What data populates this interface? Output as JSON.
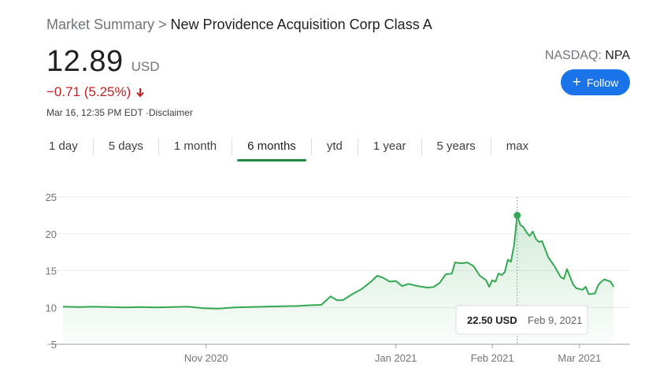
{
  "breadcrumb": {
    "root": "Market Summary",
    "separator": ">",
    "current": "New Providence Acquisition Corp Class A"
  },
  "quote": {
    "price": "12.89",
    "currency": "USD",
    "change": "−0.71 (5.25%)",
    "timestamp": "Mar 16, 12:35 PM EDT ·Disclaimer",
    "exchange_name": "NASDAQ: ",
    "ticker": "NPA"
  },
  "follow_button": {
    "label": "Follow",
    "icon": "plus-icon"
  },
  "tabs": [
    {
      "label": "1 day",
      "active": false
    },
    {
      "label": "5 days",
      "active": false
    },
    {
      "label": "1 month",
      "active": false
    },
    {
      "label": "6 months",
      "active": true
    },
    {
      "label": "ytd",
      "active": false
    },
    {
      "label": "1 year",
      "active": false
    },
    {
      "label": "5 years",
      "active": false
    },
    {
      "label": "max",
      "active": false
    }
  ],
  "tooltip": {
    "price": "22.50 USD",
    "date": "Feb 9, 2021"
  },
  "colors": {
    "accent": "#1a73e8",
    "negative": "#c5221f",
    "line": "#34a853",
    "active_tab": "#1e8e3e"
  },
  "chart_data": {
    "type": "area",
    "yticks": [
      "25",
      "20",
      "15",
      "10",
      "5"
    ],
    "ylim": [
      5,
      25
    ],
    "xlim": [
      "2020-09-16",
      "2021-03-16"
    ],
    "xticks": [
      {
        "label": "Nov 2020",
        "date": "2020-11-01"
      },
      {
        "label": "Jan 2021",
        "date": "2021-01-01"
      },
      {
        "label": "Feb 2021",
        "date": "2021-02-01"
      },
      {
        "label": "Mar 2021",
        "date": "2021-03-01"
      }
    ],
    "highlight": {
      "date": "2021-02-09",
      "value": 22.5
    },
    "points": [
      [
        "2020-09-16",
        10.1
      ],
      [
        "2020-09-21",
        10.05
      ],
      [
        "2020-09-26",
        10.1
      ],
      [
        "2020-10-01",
        10.05
      ],
      [
        "2020-10-06",
        10.0
      ],
      [
        "2020-10-11",
        10.05
      ],
      [
        "2020-10-16",
        10.0
      ],
      [
        "2020-10-21",
        10.05
      ],
      [
        "2020-10-26",
        10.1
      ],
      [
        "2020-10-31",
        9.9
      ],
      [
        "2020-11-05",
        9.85
      ],
      [
        "2020-11-10",
        10.0
      ],
      [
        "2020-11-15",
        10.05
      ],
      [
        "2020-11-20",
        10.1
      ],
      [
        "2020-11-25",
        10.15
      ],
      [
        "2020-11-30",
        10.2
      ],
      [
        "2020-12-05",
        10.3
      ],
      [
        "2020-12-08",
        10.35
      ],
      [
        "2020-12-11",
        11.5
      ],
      [
        "2020-12-13",
        11.0
      ],
      [
        "2020-12-15",
        11.0
      ],
      [
        "2020-12-18",
        11.8
      ],
      [
        "2020-12-21",
        12.5
      ],
      [
        "2020-12-24",
        13.5
      ],
      [
        "2020-12-26",
        14.3
      ],
      [
        "2020-12-28",
        14.0
      ],
      [
        "2020-12-30",
        13.5
      ],
      [
        "2021-01-01",
        13.6
      ],
      [
        "2021-01-03",
        12.9
      ],
      [
        "2021-01-05",
        13.2
      ],
      [
        "2021-01-08",
        12.9
      ],
      [
        "2021-01-11",
        12.7
      ],
      [
        "2021-01-13",
        12.75
      ],
      [
        "2021-01-15",
        13.3
      ],
      [
        "2021-01-17",
        14.5
      ],
      [
        "2021-01-19",
        14.6
      ],
      [
        "2021-01-20",
        16.1
      ],
      [
        "2021-01-22",
        16.0
      ],
      [
        "2021-01-24",
        16.1
      ],
      [
        "2021-01-26",
        15.6
      ],
      [
        "2021-01-28",
        14.3
      ],
      [
        "2021-01-30",
        13.7
      ],
      [
        "2021-01-31",
        12.8
      ],
      [
        "2021-02-01",
        13.7
      ],
      [
        "2021-02-02",
        13.5
      ],
      [
        "2021-02-03",
        14.6
      ],
      [
        "2021-02-04",
        14.4
      ],
      [
        "2021-02-05",
        14.8
      ],
      [
        "2021-02-06",
        16.5
      ],
      [
        "2021-02-07",
        16.2
      ],
      [
        "2021-02-08",
        18.5
      ],
      [
        "2021-02-09",
        22.5
      ],
      [
        "2021-02-10",
        21.2
      ],
      [
        "2021-02-11",
        20.9
      ],
      [
        "2021-02-12",
        20.2
      ],
      [
        "2021-02-13",
        19.7
      ],
      [
        "2021-02-14",
        20.3
      ],
      [
        "2021-02-15",
        19.3
      ],
      [
        "2021-02-16",
        18.9
      ],
      [
        "2021-02-17",
        19.0
      ],
      [
        "2021-02-19",
        16.8
      ],
      [
        "2021-02-21",
        15.6
      ],
      [
        "2021-02-23",
        14.1
      ],
      [
        "2021-02-24",
        13.9
      ],
      [
        "2021-02-25",
        15.2
      ],
      [
        "2021-02-27",
        13.1
      ],
      [
        "2021-02-28",
        12.6
      ],
      [
        "2021-03-02",
        12.4
      ],
      [
        "2021-03-03",
        12.8
      ],
      [
        "2021-03-04",
        11.8
      ],
      [
        "2021-03-06",
        11.9
      ],
      [
        "2021-03-07",
        13.0
      ],
      [
        "2021-03-08",
        13.5
      ],
      [
        "2021-03-09",
        13.8
      ],
      [
        "2021-03-11",
        13.5
      ],
      [
        "2021-03-12",
        12.8
      ]
    ]
  }
}
